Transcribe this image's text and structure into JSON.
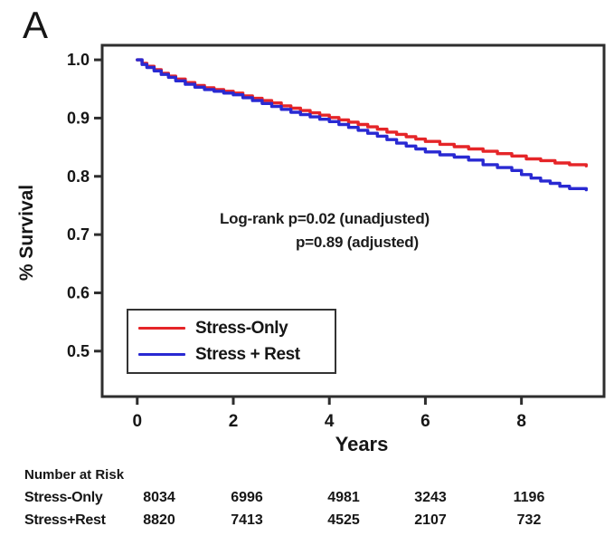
{
  "panel_label": "A",
  "chart_data": {
    "type": "line",
    "subtype": "kaplan-meier-survival",
    "title": "",
    "xlabel": "Years",
    "ylabel": "% Survival",
    "xlim": [
      -0.73,
      9.72
    ],
    "ylim": [
      0.422,
      1.025
    ],
    "x_ticks": [
      0,
      2,
      4,
      6,
      8
    ],
    "x_tick_labels": [
      "0",
      "2",
      "4",
      "6",
      "8"
    ],
    "y_ticks": [
      1.0,
      0.9,
      0.8,
      0.7,
      0.6,
      0.5
    ],
    "y_tick_labels": [
      "1.0",
      "0.9",
      "0.8",
      "0.7",
      "0.6",
      "0.5"
    ],
    "grid": false,
    "frame_color": "#2e2e2e",
    "annotation": {
      "line1": "Log-rank p=0.02 (unadjusted)",
      "line2": "p=0.89 (adjusted)"
    },
    "legend": {
      "position": "lower-left",
      "entries": [
        {
          "label": "Stress-Only",
          "color": "#e52528"
        },
        {
          "label": "Stress + Rest",
          "color": "#2929d2"
        }
      ]
    },
    "series": [
      {
        "name": "Stress-Only",
        "color": "#e52528",
        "x": [
          0,
          0.1,
          0.2,
          0.35,
          0.5,
          0.65,
          0.8,
          1.0,
          1.2,
          1.4,
          1.6,
          1.8,
          2.0,
          2.2,
          2.4,
          2.6,
          2.8,
          3.0,
          3.2,
          3.4,
          3.6,
          3.8,
          4.0,
          4.2,
          4.4,
          4.6,
          4.8,
          5.0,
          5.2,
          5.4,
          5.6,
          5.8,
          6.0,
          6.3,
          6.6,
          6.9,
          7.2,
          7.5,
          7.8,
          8.1,
          8.4,
          8.7,
          9.0,
          9.35
        ],
        "y": [
          1.0,
          0.994,
          0.989,
          0.983,
          0.977,
          0.972,
          0.967,
          0.961,
          0.956,
          0.952,
          0.949,
          0.946,
          0.943,
          0.938,
          0.934,
          0.93,
          0.926,
          0.921,
          0.917,
          0.913,
          0.909,
          0.905,
          0.901,
          0.897,
          0.893,
          0.889,
          0.885,
          0.881,
          0.876,
          0.872,
          0.868,
          0.864,
          0.86,
          0.855,
          0.851,
          0.847,
          0.843,
          0.839,
          0.835,
          0.83,
          0.827,
          0.823,
          0.82,
          0.818
        ]
      },
      {
        "name": "Stress + Rest",
        "color": "#2929d2",
        "x": [
          0,
          0.1,
          0.2,
          0.35,
          0.5,
          0.65,
          0.8,
          1.0,
          1.2,
          1.4,
          1.6,
          1.8,
          2.0,
          2.2,
          2.4,
          2.6,
          2.8,
          3.0,
          3.2,
          3.4,
          3.6,
          3.8,
          4.0,
          4.2,
          4.4,
          4.6,
          4.8,
          5.0,
          5.2,
          5.4,
          5.6,
          5.8,
          6.0,
          6.3,
          6.6,
          6.9,
          7.2,
          7.5,
          7.8,
          8.0,
          8.2,
          8.4,
          8.6,
          8.8,
          9.0,
          9.35
        ],
        "y": [
          1.0,
          0.992,
          0.987,
          0.981,
          0.975,
          0.97,
          0.964,
          0.958,
          0.953,
          0.949,
          0.946,
          0.943,
          0.94,
          0.935,
          0.93,
          0.925,
          0.92,
          0.915,
          0.91,
          0.906,
          0.902,
          0.898,
          0.894,
          0.889,
          0.884,
          0.879,
          0.874,
          0.869,
          0.863,
          0.857,
          0.852,
          0.847,
          0.842,
          0.837,
          0.833,
          0.828,
          0.82,
          0.815,
          0.81,
          0.803,
          0.797,
          0.792,
          0.788,
          0.783,
          0.779,
          0.777
        ]
      }
    ]
  },
  "risk_table": {
    "title": "Number at Risk",
    "rows": [
      {
        "label": "Stress-Only",
        "values": [
          "8034",
          "6996",
          "4981",
          "3243",
          "1196"
        ]
      },
      {
        "label": "Stress+Rest",
        "values": [
          "8820",
          "7413",
          "4525",
          "2107",
          "732"
        ]
      }
    ]
  }
}
